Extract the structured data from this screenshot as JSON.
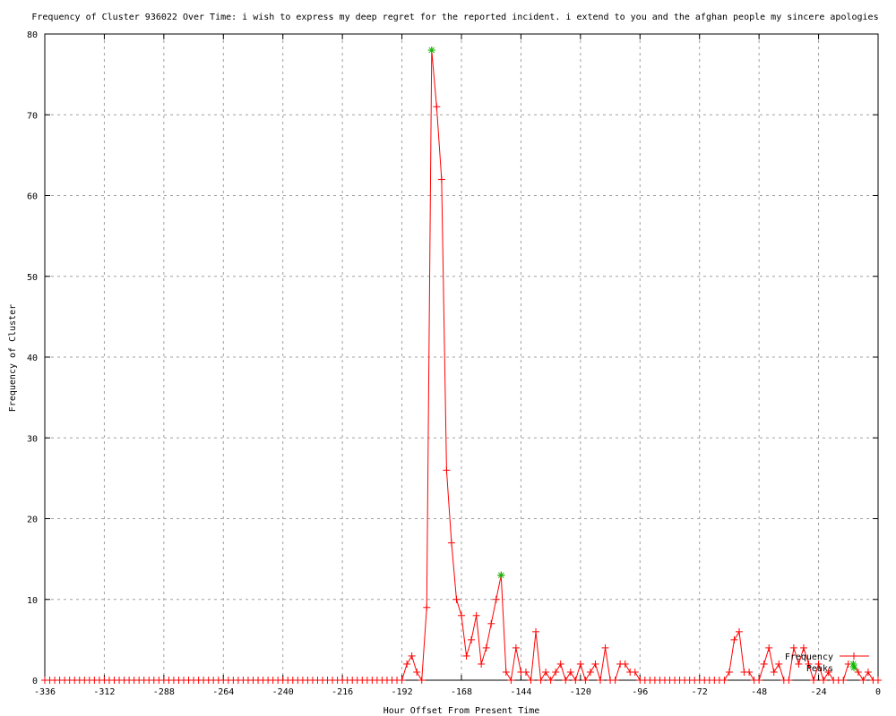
{
  "chart_data": {
    "type": "line",
    "title": "Frequency of Cluster 936022 Over Time: i wish to express my deep regret for the reported incident. i extend to you and the afghan people my sincere apologies",
    "xlabel": "Hour Offset From Present Time",
    "ylabel": "Frequency of Cluster",
    "xlim": [
      -336,
      0
    ],
    "ylim": [
      0,
      80
    ],
    "xticks": [
      -336,
      -312,
      -288,
      -264,
      -240,
      -216,
      -192,
      -168,
      -144,
      -120,
      -96,
      -72,
      -48,
      -24,
      0
    ],
    "yticks": [
      0,
      10,
      20,
      30,
      40,
      50,
      60,
      70,
      80
    ],
    "grid": true,
    "legend_placement": "bottom-right",
    "series": [
      {
        "name": "Frequency",
        "color": "#ff0000",
        "marker": "plus",
        "x": [
          -336,
          -334,
          -332,
          -330,
          -328,
          -326,
          -324,
          -322,
          -320,
          -318,
          -316,
          -314,
          -312,
          -310,
          -308,
          -306,
          -304,
          -302,
          -300,
          -298,
          -296,
          -294,
          -292,
          -290,
          -288,
          -286,
          -284,
          -282,
          -280,
          -278,
          -276,
          -274,
          -272,
          -270,
          -268,
          -266,
          -264,
          -262,
          -260,
          -258,
          -256,
          -254,
          -252,
          -250,
          -248,
          -246,
          -244,
          -242,
          -240,
          -238,
          -236,
          -234,
          -232,
          -230,
          -228,
          -226,
          -224,
          -222,
          -220,
          -218,
          -216,
          -214,
          -212,
          -210,
          -208,
          -206,
          -204,
          -202,
          -200,
          -198,
          -196,
          -194,
          -192,
          -190,
          -188,
          -186,
          -184,
          -182,
          -180,
          -178,
          -176,
          -174,
          -172,
          -170,
          -168,
          -166,
          -164,
          -162,
          -160,
          -158,
          -156,
          -154,
          -152,
          -150,
          -148,
          -146,
          -144,
          -142,
          -140,
          -138,
          -136,
          -134,
          -132,
          -130,
          -128,
          -126,
          -124,
          -122,
          -120,
          -118,
          -116,
          -114,
          -112,
          -110,
          -108,
          -106,
          -104,
          -102,
          -100,
          -98,
          -96,
          -94,
          -92,
          -90,
          -88,
          -86,
          -84,
          -82,
          -80,
          -78,
          -76,
          -74,
          -72,
          -70,
          -68,
          -66,
          -64,
          -62,
          -60,
          -58,
          -56,
          -54,
          -52,
          -50,
          -48,
          -46,
          -44,
          -42,
          -40,
          -38,
          -36,
          -34,
          -32,
          -30,
          -28,
          -26,
          -24,
          -22,
          -20,
          -18,
          -16,
          -14,
          -12,
          -10,
          -8,
          -6,
          -4,
          -2,
          0
        ],
        "y": [
          0,
          0,
          0,
          0,
          0,
          0,
          0,
          0,
          0,
          0,
          0,
          0,
          0,
          0,
          0,
          0,
          0,
          0,
          0,
          0,
          0,
          0,
          0,
          0,
          0,
          0,
          0,
          0,
          0,
          0,
          0,
          0,
          0,
          0,
          0,
          0,
          0,
          0,
          0,
          0,
          0,
          0,
          0,
          0,
          0,
          0,
          0,
          0,
          0,
          0,
          0,
          0,
          0,
          0,
          0,
          0,
          0,
          0,
          0,
          0,
          0,
          0,
          0,
          0,
          0,
          0,
          0,
          0,
          0,
          0,
          0,
          0,
          0,
          2,
          3,
          1,
          0,
          9,
          78,
          71,
          62,
          26,
          17,
          10,
          8,
          3,
          5,
          8,
          2,
          4,
          7,
          10,
          13,
          1,
          0,
          4,
          1,
          1,
          0,
          6,
          0,
          1,
          0,
          1,
          2,
          0,
          1,
          0,
          2,
          0,
          1,
          2,
          0,
          4,
          0,
          0,
          2,
          2,
          1,
          1,
          0,
          0,
          0,
          0,
          0,
          0,
          0,
          0,
          0,
          0,
          0,
          0,
          0,
          0,
          0,
          0,
          0,
          0,
          1,
          5,
          6,
          1,
          1,
          0,
          0,
          2,
          4,
          1,
          2,
          0,
          0,
          4,
          2,
          4,
          2,
          0,
          2,
          0,
          1,
          0,
          0,
          0,
          2,
          2,
          1,
          0,
          1,
          0,
          0
        ]
      },
      {
        "name": "Peaks",
        "color": "#00c000",
        "marker": "star",
        "x": [
          -180,
          -152,
          -10
        ],
        "y": [
          78,
          13,
          2
        ]
      }
    ]
  }
}
